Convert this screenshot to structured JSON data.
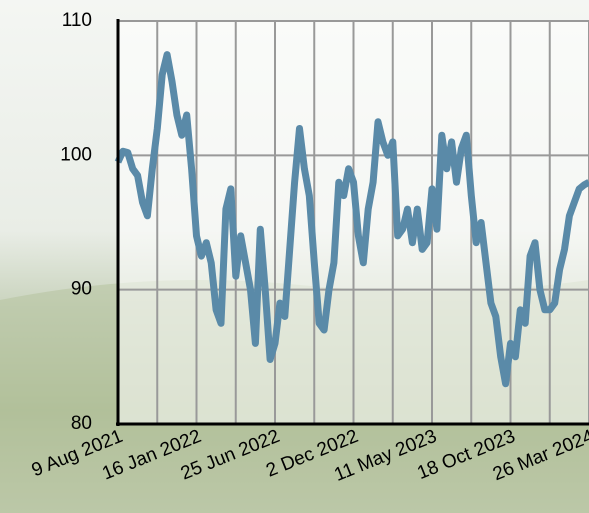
{
  "chart_data": {
    "type": "line",
    "x": [
      "2021-08-09",
      "2021-08-19",
      "2021-08-29",
      "2021-09-08",
      "2021-09-18",
      "2021-09-28",
      "2021-10-08",
      "2021-10-18",
      "2021-10-28",
      "2021-11-07",
      "2021-11-17",
      "2021-11-27",
      "2021-12-07",
      "2021-12-17",
      "2021-12-27",
      "2022-01-06",
      "2022-01-16",
      "2022-01-26",
      "2022-02-05",
      "2022-02-15",
      "2022-02-25",
      "2022-03-07",
      "2022-03-17",
      "2022-03-27",
      "2022-04-06",
      "2022-04-16",
      "2022-04-26",
      "2022-05-06",
      "2022-05-16",
      "2022-05-26",
      "2022-06-05",
      "2022-06-15",
      "2022-06-25",
      "2022-07-05",
      "2022-07-15",
      "2022-07-25",
      "2022-08-04",
      "2022-08-14",
      "2022-08-24",
      "2022-09-03",
      "2022-09-13",
      "2022-09-23",
      "2022-10-03",
      "2022-10-13",
      "2022-10-23",
      "2022-11-02",
      "2022-11-12",
      "2022-11-22",
      "2022-12-02",
      "2022-12-12",
      "2022-12-22",
      "2023-01-01",
      "2023-01-11",
      "2023-01-21",
      "2023-01-31",
      "2023-02-10",
      "2023-02-20",
      "2023-03-02",
      "2023-03-12",
      "2023-03-22",
      "2023-04-01",
      "2023-04-11",
      "2023-04-21",
      "2023-05-01",
      "2023-05-11",
      "2023-05-21",
      "2023-05-31",
      "2023-06-10",
      "2023-06-20",
      "2023-06-30",
      "2023-07-10",
      "2023-07-20",
      "2023-07-30",
      "2023-08-09",
      "2023-08-19",
      "2023-08-29",
      "2023-09-08",
      "2023-09-18",
      "2023-09-28",
      "2023-10-08",
      "2023-10-18",
      "2023-10-28",
      "2023-11-07",
      "2023-11-17",
      "2023-11-27",
      "2023-12-07",
      "2023-12-17",
      "2023-12-27",
      "2024-01-06",
      "2024-01-16",
      "2024-01-26",
      "2024-02-05",
      "2024-02-15",
      "2024-02-25",
      "2024-03-06",
      "2024-03-16",
      "2024-03-26"
    ],
    "series": [
      {
        "color": "#5a8aa8",
        "values": [
          99.5,
          100.3,
          100.2,
          99,
          98.5,
          96.5,
          95.5,
          99,
          102,
          106,
          107.5,
          105.5,
          103,
          101.5,
          103,
          99,
          94,
          92.5,
          93.5,
          92,
          88.5,
          87.5,
          96,
          97.5,
          91,
          94,
          92,
          90,
          86,
          94.5,
          90,
          84.8,
          86,
          89,
          88,
          93,
          98,
          102,
          99,
          97,
          92,
          87.5,
          87,
          90,
          92,
          98,
          97,
          99,
          98,
          94,
          92,
          96,
          98,
          102.5,
          101,
          100,
          101,
          94,
          94.5,
          96,
          93.5,
          96,
          93,
          93.5,
          97.5,
          94.5,
          101.5,
          99,
          101,
          98,
          100.5,
          101.5,
          97,
          93.5,
          95,
          92,
          89,
          88,
          85,
          83,
          86,
          85,
          88.5,
          87.5,
          92.5,
          93.5,
          90,
          88.5,
          88.5,
          89,
          91.5,
          93,
          95.5,
          96.5,
          97.5,
          97.8,
          98
        ]
      }
    ],
    "xlim": [
      "2021-08-09",
      "2024-03-26"
    ],
    "xticks": [
      {
        "value": "2021-08-09",
        "label": "9 Aug 2021"
      },
      {
        "value": "2022-01-16",
        "label": "16 Jan 2022"
      },
      {
        "value": "2022-06-25",
        "label": "25 Jun 2022"
      },
      {
        "value": "2022-12-02",
        "label": "2 Dec 2022"
      },
      {
        "value": "2023-05-11",
        "label": "11 May 2023"
      },
      {
        "value": "2023-10-18",
        "label": "18 Oct 2023"
      },
      {
        "value": "2024-03-26",
        "label": "26 Mar 2024"
      }
    ],
    "ylim": [
      80,
      110
    ],
    "yticks": [
      80,
      90,
      100,
      110
    ],
    "grid": true
  }
}
